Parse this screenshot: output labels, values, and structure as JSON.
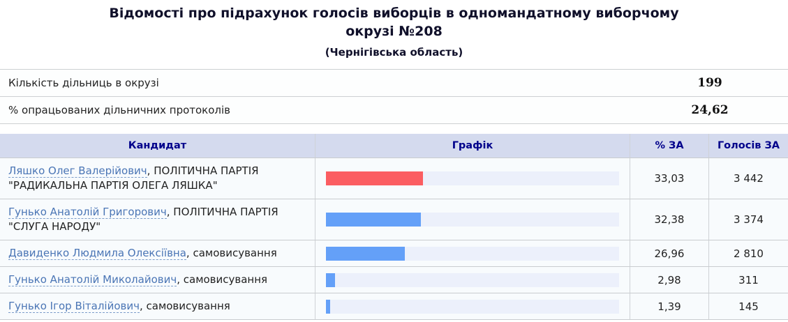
{
  "page": {
    "title": "Відомості про підрахунок голосів виборців в одномандатному виборчому окрузі №208",
    "subtitle": "(Чернігівська область)"
  },
  "summary": {
    "rows": [
      {
        "label": "Кількість дільниць в окрузі",
        "value": "199"
      },
      {
        "label": "% опрацьованих дільничних протоколів",
        "value": "24,62"
      }
    ]
  },
  "results_table": {
    "headers": {
      "candidate": "Кандидат",
      "chart": "Графік",
      "percent": "% ЗА",
      "votes": "Голосів ЗА"
    },
    "rows": [
      {
        "link": "Ляшко Олег Валерійович",
        "suffix": ", ПОЛІТИЧНА ПАРТІЯ \"РАДИКАЛЬНА ПАРТІЯ ОЛЕГА ЛЯШКА\"",
        "percent": "33,03",
        "votes": "3 442",
        "bar_pct": 33.03,
        "bar_color": "#fb5d61"
      },
      {
        "link": "Гунько Анатолій Григорович",
        "suffix": ", ПОЛІТИЧНА ПАРТІЯ \"СЛУГА НАРОДУ\"",
        "percent": "32,38",
        "votes": "3 374",
        "bar_pct": 32.38,
        "bar_color": "#64a0f8"
      },
      {
        "link": "Давиденко Людмила Олексіївна",
        "suffix": ", самовисування",
        "percent": "26,96",
        "votes": "2 810",
        "bar_pct": 26.96,
        "bar_color": "#64a0f8"
      },
      {
        "link": "Гунько Анатолій Миколайович",
        "suffix": ", самовисування",
        "percent": "2,98",
        "votes": "311",
        "bar_pct": 2.98,
        "bar_color": "#64a0f8"
      },
      {
        "link": "Гунько Ігор Віталійович",
        "suffix": ", самовисування",
        "percent": "1,39",
        "votes": "145",
        "bar_pct": 1.39,
        "bar_color": "#64a0f8"
      }
    ]
  },
  "chart_data": {
    "type": "bar",
    "orientation": "horizontal",
    "categories": [
      "Ляшко Олег Валерійович",
      "Гунько Анатолій Григорович",
      "Давиденко Людмила Олексіївна",
      "Гунько Анатолій Миколайович",
      "Гунько Ігор Віталійович"
    ],
    "series": [
      {
        "name": "% ЗА",
        "values": [
          33.03,
          32.38,
          26.96,
          2.98,
          1.39
        ]
      },
      {
        "name": "Голосів ЗА",
        "values": [
          3442,
          3374,
          2810,
          311,
          145
        ]
      }
    ],
    "title": "Графік",
    "xlabel": "% ЗА",
    "ylabel": "Кандидат",
    "xlim": [
      0,
      100
    ],
    "grid": false,
    "bar_colors": [
      "#fb5d61",
      "#64a0f8",
      "#64a0f8",
      "#64a0f8",
      "#64a0f8"
    ],
    "track_color": "#ecf0fb"
  },
  "colors": {
    "header_bg": "#d4daee",
    "header_text": "#00008b",
    "row_bg": "#f8fbfd",
    "bar_red": "#fb5d61",
    "bar_blue": "#64a0f8",
    "bar_track": "#ecf0fb",
    "link": "#4a75b5",
    "border": "#c9cccf"
  }
}
